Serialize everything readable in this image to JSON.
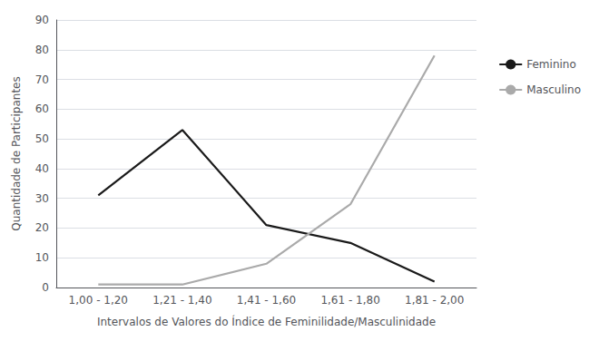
{
  "chart_data": {
    "type": "line",
    "categories": [
      "1,00 - 1,20",
      "1,21 - 1,40",
      "1,41 - 1,60",
      "1,61 - 1,80",
      "1,81 - 2,00"
    ],
    "series": [
      {
        "name": "Feminino",
        "color": "#1a1a1a",
        "values": [
          31,
          53,
          21,
          15,
          2
        ]
      },
      {
        "name": "Masculino",
        "color": "#aaaaaa",
        "values": [
          1,
          1,
          8,
          28,
          78
        ]
      }
    ],
    "xlabel": "Intervalos de Valores do Índice de Feminilidade/Masculinidade",
    "ylabel": "Quantidade de Participantes",
    "ylim": [
      0,
      90
    ],
    "yticks": [
      0,
      10,
      20,
      30,
      40,
      50,
      60,
      70,
      80,
      90
    ],
    "grid": true,
    "legend": "right"
  }
}
